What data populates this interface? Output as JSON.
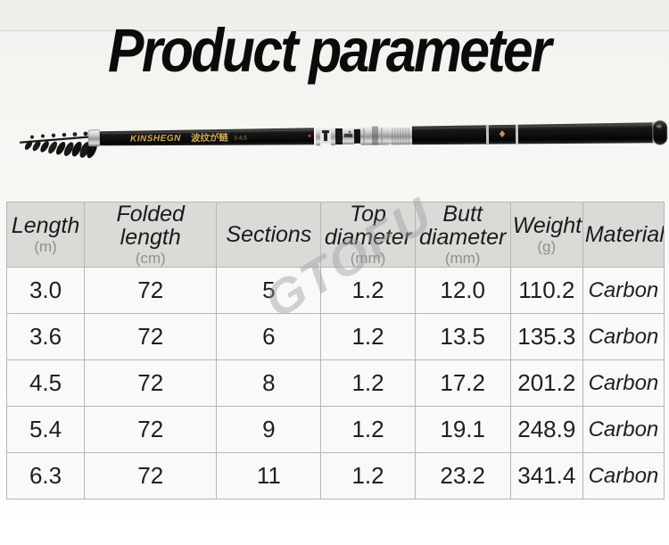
{
  "title": "Product parameter",
  "watermark": "GTOFU",
  "rod": {
    "brand": "KINSHEGN",
    "model": "波纹が鲢",
    "spec": "3-4.5"
  },
  "table": {
    "columns": [
      {
        "label": "Length",
        "unit": "(m)"
      },
      {
        "label": "Folded length",
        "unit": "(cm)"
      },
      {
        "label": "Sections",
        "unit": ""
      },
      {
        "label": "Top diameter",
        "unit": "(mm)"
      },
      {
        "label": "Butt diameter",
        "unit": "(mm)"
      },
      {
        "label": "Weight",
        "unit": "(g)"
      },
      {
        "label": "Material",
        "unit": ""
      }
    ],
    "rows": [
      [
        "3.0",
        "72",
        "5",
        "1.2",
        "12.0",
        "110.2",
        "Carbon"
      ],
      [
        "3.6",
        "72",
        "6",
        "1.2",
        "13.5",
        "135.3",
        "Carbon"
      ],
      [
        "4.5",
        "72",
        "8",
        "1.2",
        "17.2",
        "201.2",
        "Carbon"
      ],
      [
        "5.4",
        "72",
        "9",
        "1.2",
        "19.1",
        "248.9",
        "Carbon"
      ],
      [
        "6.3",
        "72",
        "11",
        "1.2",
        "23.2",
        "341.4",
        "Carbon"
      ]
    ]
  },
  "colors": {
    "title_color": "#0b0b0b",
    "rod_gold": "#d2a94e",
    "rod_gold_dim": "#a9873e",
    "watermark_gray": "#9a9a9a",
    "header_bg": "#dadad7",
    "row_bg": "#f9f9f7",
    "border_gray": "#b6b6b2",
    "unit_gray": "#8f8f8c",
    "red_dot": "#c23048"
  }
}
